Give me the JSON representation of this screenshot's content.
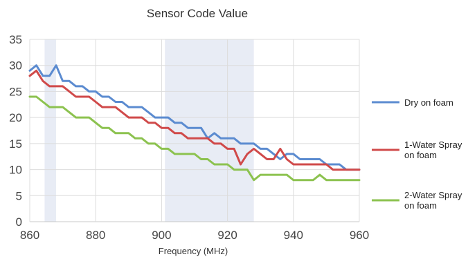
{
  "chart_data": {
    "type": "line",
    "title": "Sensor Code Value",
    "xlabel": "Frequency (MHz)",
    "ylabel": "",
    "xlim": [
      860,
      960
    ],
    "ylim": [
      0,
      35
    ],
    "xticks": [
      860,
      880,
      900,
      920,
      940,
      960
    ],
    "yticks": [
      0,
      5,
      10,
      15,
      20,
      25,
      30,
      35
    ],
    "grid": true,
    "legend_position": "right",
    "highlight_bands": [
      [
        864.5,
        868
      ],
      [
        901,
        928
      ]
    ],
    "highlight_color": "#e8ecf5",
    "series": [
      {
        "name": "Dry on foam",
        "color": "#5b8bd0",
        "x": [
          860,
          862,
          864,
          866,
          868,
          870,
          872,
          874,
          876,
          878,
          880,
          882,
          884,
          886,
          888,
          890,
          892,
          894,
          896,
          898,
          900,
          902,
          904,
          906,
          908,
          910,
          912,
          914,
          916,
          918,
          920,
          922,
          924,
          926,
          928,
          930,
          932,
          934,
          936,
          938,
          940,
          942,
          944,
          946,
          948,
          950,
          952,
          954,
          956,
          958,
          960
        ],
        "values": [
          29,
          30,
          28,
          28,
          30,
          27,
          27,
          26,
          26,
          25,
          25,
          24,
          24,
          23,
          23,
          22,
          22,
          22,
          21,
          20,
          20,
          20,
          19,
          19,
          18,
          18,
          18,
          16,
          17,
          16,
          16,
          16,
          15,
          15,
          15,
          14,
          14,
          13,
          12,
          13,
          13,
          12,
          12,
          12,
          12,
          11,
          11,
          11,
          10,
          10,
          10
        ]
      },
      {
        "name": "1-Water Spray on foam",
        "color": "#d04a4a",
        "x": [
          860,
          862,
          864,
          866,
          868,
          870,
          872,
          874,
          876,
          878,
          880,
          882,
          884,
          886,
          888,
          890,
          892,
          894,
          896,
          898,
          900,
          902,
          904,
          906,
          908,
          910,
          912,
          914,
          916,
          918,
          920,
          922,
          924,
          926,
          928,
          930,
          932,
          934,
          936,
          938,
          940,
          942,
          944,
          946,
          948,
          950,
          952,
          954,
          956,
          958,
          960
        ],
        "values": [
          28,
          29,
          27,
          26,
          26,
          26,
          25,
          24,
          24,
          24,
          23,
          22,
          22,
          22,
          21,
          20,
          20,
          20,
          19,
          19,
          18,
          18,
          17,
          17,
          16,
          16,
          16,
          16,
          15,
          15,
          14,
          14,
          11,
          13,
          14,
          13,
          12,
          12,
          14,
          12,
          11,
          11,
          11,
          11,
          11,
          11,
          10,
          10,
          10,
          10,
          10
        ]
      },
      {
        "name": "2-Water Spray on foam",
        "color": "#8cc24f",
        "x": [
          860,
          862,
          864,
          866,
          868,
          870,
          872,
          874,
          876,
          878,
          880,
          882,
          884,
          886,
          888,
          890,
          892,
          894,
          896,
          898,
          900,
          902,
          904,
          906,
          908,
          910,
          912,
          914,
          916,
          918,
          920,
          922,
          924,
          926,
          928,
          930,
          932,
          934,
          936,
          938,
          940,
          942,
          944,
          946,
          948,
          950,
          952,
          954,
          956,
          958,
          960
        ],
        "values": [
          24,
          24,
          23,
          22,
          22,
          22,
          21,
          20,
          20,
          20,
          19,
          18,
          18,
          17,
          17,
          17,
          16,
          16,
          15,
          15,
          14,
          14,
          13,
          13,
          13,
          13,
          12,
          12,
          11,
          11,
          11,
          10,
          10,
          10,
          8,
          9,
          9,
          9,
          9,
          9,
          8,
          8,
          8,
          8,
          9,
          8,
          8,
          8,
          8,
          8,
          8
        ]
      }
    ]
  }
}
